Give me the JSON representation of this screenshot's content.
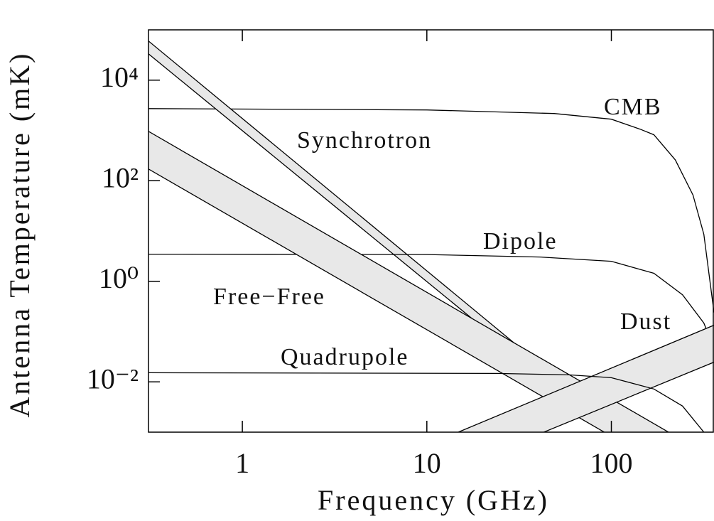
{
  "chart_data": {
    "type": "line",
    "xlabel": "Frequency (GHz)",
    "ylabel": "Antenna Temperature (mK)",
    "xscale": "log",
    "yscale": "log",
    "xlim": [
      0.31,
      360
    ],
    "ylim": [
      0.001,
      100000
    ],
    "xticks": [
      1,
      10,
      100
    ],
    "yticks": [
      {
        "value": 0.01,
        "label": "10⁻²"
      },
      {
        "value": 1,
        "label": "10⁰"
      },
      {
        "value": 100,
        "label": "10²"
      },
      {
        "value": 10000,
        "label": "10⁴"
      }
    ],
    "color": "#000000",
    "band_color": "#e8e8e8",
    "series": [
      {
        "name": "CMB",
        "x": [
          0.31,
          10,
          49,
          100,
          143,
          170,
          222,
          277,
          317,
          360
        ],
        "values": [
          2720,
          2550,
          2170,
          1670,
          1060,
          820,
          260,
          52,
          8.6,
          0.24
        ]
      },
      {
        "name": "Synchrotron",
        "x": [
          0.31,
          360
        ],
        "upper": [
          60000,
          3.1e-05
        ],
        "lower": [
          33300,
          2.1e-05
        ]
      },
      {
        "name": "Dipole",
        "x": [
          0.31,
          10,
          41,
          100,
          170,
          243,
          317,
          360
        ],
        "values": [
          3.46,
          3.41,
          3.04,
          2.5,
          1.44,
          0.54,
          0.148,
          0.047
        ]
      },
      {
        "name": "Free−Free",
        "x": [
          0.31,
          360
        ],
        "upper": [
          960,
          0.0003
        ],
        "lower": [
          171,
          5.5e-05
        ]
      },
      {
        "name": "Dust",
        "x": [
          14.8,
          360
        ],
        "upper": [
          0.001,
          0.134
        ],
        "lower": [
          0.0002,
          0.0247
        ]
      },
      {
        "name": "Quadrupole",
        "x": [
          0.31,
          24,
          59,
          100,
          170,
          243,
          317
        ],
        "values": [
          0.0152,
          0.0147,
          0.0138,
          0.0121,
          0.0072,
          0.0033,
          0.001
        ]
      }
    ]
  }
}
